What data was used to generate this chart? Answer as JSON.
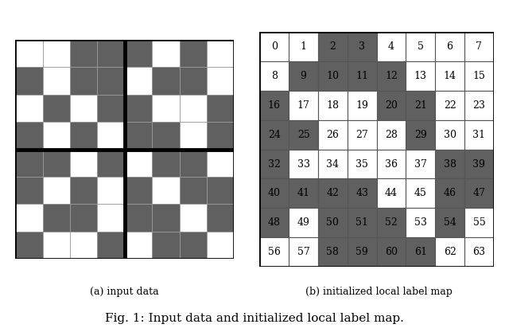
{
  "title": "Fig. 1: Input data and initialized local label map.",
  "caption_a": "(a) input data",
  "caption_b": "(b) initialized local label map",
  "grid_size": 8,
  "dark_color": "#606060",
  "light_color": "#ffffff",
  "input_pattern": [
    [
      0,
      0,
      1,
      1,
      1,
      0,
      1,
      0
    ],
    [
      1,
      0,
      1,
      1,
      0,
      1,
      1,
      0
    ],
    [
      0,
      1,
      0,
      1,
      1,
      0,
      0,
      1
    ],
    [
      1,
      0,
      1,
      0,
      1,
      1,
      0,
      1
    ],
    [
      1,
      1,
      0,
      1,
      0,
      1,
      1,
      0
    ],
    [
      1,
      0,
      1,
      0,
      1,
      0,
      1,
      1
    ],
    [
      0,
      1,
      1,
      0,
      1,
      1,
      0,
      1
    ],
    [
      1,
      0,
      0,
      1,
      0,
      1,
      1,
      0
    ]
  ],
  "label_colors": [
    [
      0,
      0,
      1,
      1,
      0,
      0,
      0,
      0
    ],
    [
      0,
      1,
      1,
      1,
      1,
      0,
      0,
      0
    ],
    [
      1,
      0,
      0,
      0,
      1,
      1,
      0,
      0
    ],
    [
      1,
      1,
      0,
      0,
      0,
      1,
      0,
      0
    ],
    [
      1,
      0,
      0,
      0,
      0,
      0,
      1,
      1
    ],
    [
      1,
      1,
      1,
      1,
      0,
      0,
      1,
      1
    ],
    [
      1,
      0,
      1,
      1,
      1,
      0,
      1,
      0
    ],
    [
      0,
      0,
      1,
      1,
      1,
      1,
      0,
      0
    ]
  ],
  "figsize": [
    6.4,
    4.17
  ],
  "dpi": 100
}
